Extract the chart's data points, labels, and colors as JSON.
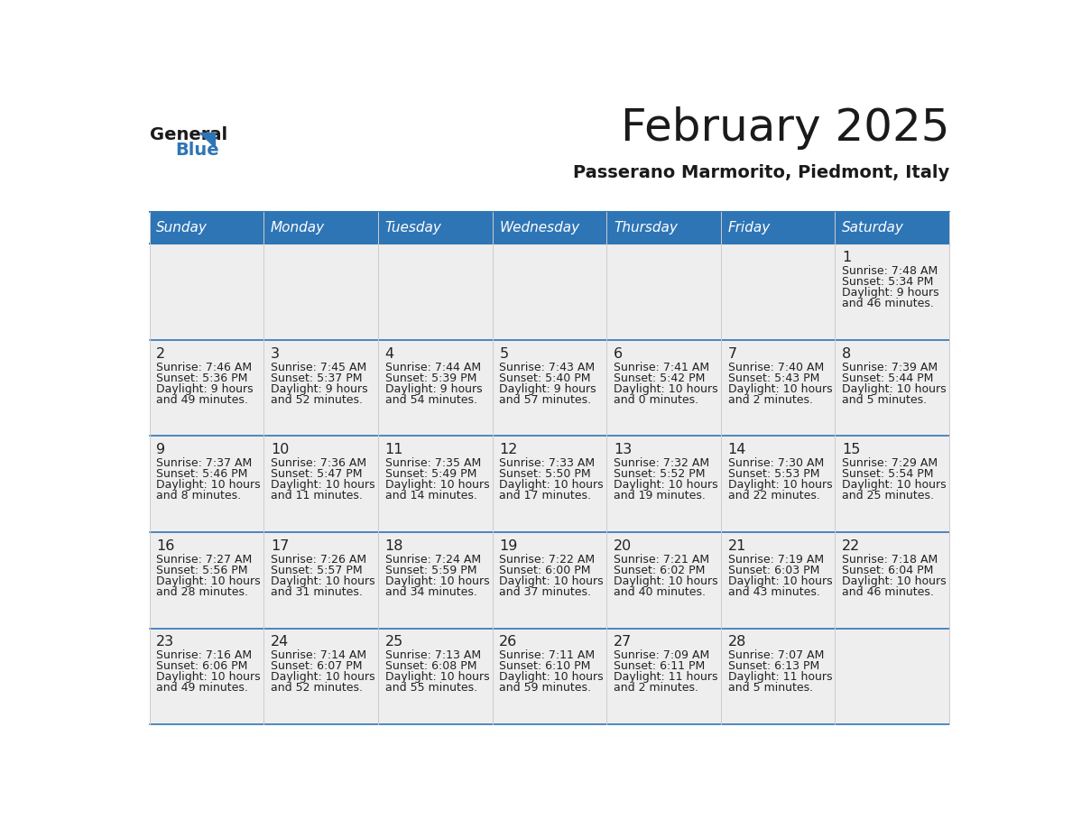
{
  "title": "February 2025",
  "subtitle": "Passerano Marmorito, Piedmont, Italy",
  "header_bg": "#2e75b6",
  "header_fg": "#ffffff",
  "cell_bg": "#eeeeee",
  "cell_bg_white": "#ffffff",
  "border_color": "#2e75b6",
  "grid_line_color": "#cccccc",
  "text_color": "#222222",
  "day_names": [
    "Sunday",
    "Monday",
    "Tuesday",
    "Wednesday",
    "Thursday",
    "Friday",
    "Saturday"
  ],
  "days": [
    {
      "day": 1,
      "col": 6,
      "row": 0,
      "sunrise": "7:48 AM",
      "sunset": "5:34 PM",
      "daylight_h": "9 hours",
      "daylight_m": "and 46 minutes."
    },
    {
      "day": 2,
      "col": 0,
      "row": 1,
      "sunrise": "7:46 AM",
      "sunset": "5:36 PM",
      "daylight_h": "9 hours",
      "daylight_m": "and 49 minutes."
    },
    {
      "day": 3,
      "col": 1,
      "row": 1,
      "sunrise": "7:45 AM",
      "sunset": "5:37 PM",
      "daylight_h": "9 hours",
      "daylight_m": "and 52 minutes."
    },
    {
      "day": 4,
      "col": 2,
      "row": 1,
      "sunrise": "7:44 AM",
      "sunset": "5:39 PM",
      "daylight_h": "9 hours",
      "daylight_m": "and 54 minutes."
    },
    {
      "day": 5,
      "col": 3,
      "row": 1,
      "sunrise": "7:43 AM",
      "sunset": "5:40 PM",
      "daylight_h": "9 hours",
      "daylight_m": "and 57 minutes."
    },
    {
      "day": 6,
      "col": 4,
      "row": 1,
      "sunrise": "7:41 AM",
      "sunset": "5:42 PM",
      "daylight_h": "10 hours",
      "daylight_m": "and 0 minutes."
    },
    {
      "day": 7,
      "col": 5,
      "row": 1,
      "sunrise": "7:40 AM",
      "sunset": "5:43 PM",
      "daylight_h": "10 hours",
      "daylight_m": "and 2 minutes."
    },
    {
      "day": 8,
      "col": 6,
      "row": 1,
      "sunrise": "7:39 AM",
      "sunset": "5:44 PM",
      "daylight_h": "10 hours",
      "daylight_m": "and 5 minutes."
    },
    {
      "day": 9,
      "col": 0,
      "row": 2,
      "sunrise": "7:37 AM",
      "sunset": "5:46 PM",
      "daylight_h": "10 hours",
      "daylight_m": "and 8 minutes."
    },
    {
      "day": 10,
      "col": 1,
      "row": 2,
      "sunrise": "7:36 AM",
      "sunset": "5:47 PM",
      "daylight_h": "10 hours",
      "daylight_m": "and 11 minutes."
    },
    {
      "day": 11,
      "col": 2,
      "row": 2,
      "sunrise": "7:35 AM",
      "sunset": "5:49 PM",
      "daylight_h": "10 hours",
      "daylight_m": "and 14 minutes."
    },
    {
      "day": 12,
      "col": 3,
      "row": 2,
      "sunrise": "7:33 AM",
      "sunset": "5:50 PM",
      "daylight_h": "10 hours",
      "daylight_m": "and 17 minutes."
    },
    {
      "day": 13,
      "col": 4,
      "row": 2,
      "sunrise": "7:32 AM",
      "sunset": "5:52 PM",
      "daylight_h": "10 hours",
      "daylight_m": "and 19 minutes."
    },
    {
      "day": 14,
      "col": 5,
      "row": 2,
      "sunrise": "7:30 AM",
      "sunset": "5:53 PM",
      "daylight_h": "10 hours",
      "daylight_m": "and 22 minutes."
    },
    {
      "day": 15,
      "col": 6,
      "row": 2,
      "sunrise": "7:29 AM",
      "sunset": "5:54 PM",
      "daylight_h": "10 hours",
      "daylight_m": "and 25 minutes."
    },
    {
      "day": 16,
      "col": 0,
      "row": 3,
      "sunrise": "7:27 AM",
      "sunset": "5:56 PM",
      "daylight_h": "10 hours",
      "daylight_m": "and 28 minutes."
    },
    {
      "day": 17,
      "col": 1,
      "row": 3,
      "sunrise": "7:26 AM",
      "sunset": "5:57 PM",
      "daylight_h": "10 hours",
      "daylight_m": "and 31 minutes."
    },
    {
      "day": 18,
      "col": 2,
      "row": 3,
      "sunrise": "7:24 AM",
      "sunset": "5:59 PM",
      "daylight_h": "10 hours",
      "daylight_m": "and 34 minutes."
    },
    {
      "day": 19,
      "col": 3,
      "row": 3,
      "sunrise": "7:22 AM",
      "sunset": "6:00 PM",
      "daylight_h": "10 hours",
      "daylight_m": "and 37 minutes."
    },
    {
      "day": 20,
      "col": 4,
      "row": 3,
      "sunrise": "7:21 AM",
      "sunset": "6:02 PM",
      "daylight_h": "10 hours",
      "daylight_m": "and 40 minutes."
    },
    {
      "day": 21,
      "col": 5,
      "row": 3,
      "sunrise": "7:19 AM",
      "sunset": "6:03 PM",
      "daylight_h": "10 hours",
      "daylight_m": "and 43 minutes."
    },
    {
      "day": 22,
      "col": 6,
      "row": 3,
      "sunrise": "7:18 AM",
      "sunset": "6:04 PM",
      "daylight_h": "10 hours",
      "daylight_m": "and 46 minutes."
    },
    {
      "day": 23,
      "col": 0,
      "row": 4,
      "sunrise": "7:16 AM",
      "sunset": "6:06 PM",
      "daylight_h": "10 hours",
      "daylight_m": "and 49 minutes."
    },
    {
      "day": 24,
      "col": 1,
      "row": 4,
      "sunrise": "7:14 AM",
      "sunset": "6:07 PM",
      "daylight_h": "10 hours",
      "daylight_m": "and 52 minutes."
    },
    {
      "day": 25,
      "col": 2,
      "row": 4,
      "sunrise": "7:13 AM",
      "sunset": "6:08 PM",
      "daylight_h": "10 hours",
      "daylight_m": "and 55 minutes."
    },
    {
      "day": 26,
      "col": 3,
      "row": 4,
      "sunrise": "7:11 AM",
      "sunset": "6:10 PM",
      "daylight_h": "10 hours",
      "daylight_m": "and 59 minutes."
    },
    {
      "day": 27,
      "col": 4,
      "row": 4,
      "sunrise": "7:09 AM",
      "sunset": "6:11 PM",
      "daylight_h": "11 hours",
      "daylight_m": "and 2 minutes."
    },
    {
      "day": 28,
      "col": 5,
      "row": 4,
      "sunrise": "7:07 AM",
      "sunset": "6:13 PM",
      "daylight_h": "11 hours",
      "daylight_m": "and 5 minutes."
    }
  ],
  "num_rows": 5,
  "num_cols": 7,
  "fig_width": 11.88,
  "fig_height": 9.18,
  "dpi": 100
}
